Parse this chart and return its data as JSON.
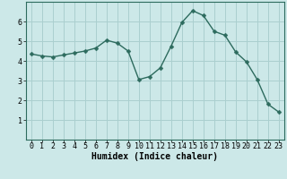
{
  "x": [
    0,
    1,
    2,
    3,
    4,
    5,
    6,
    7,
    8,
    9,
    10,
    11,
    12,
    13,
    14,
    15,
    16,
    17,
    18,
    19,
    20,
    21,
    22,
    23
  ],
  "y": [
    4.35,
    4.25,
    4.2,
    4.3,
    4.4,
    4.5,
    4.65,
    5.05,
    4.9,
    4.5,
    3.05,
    3.2,
    3.65,
    4.75,
    5.95,
    6.55,
    6.3,
    5.5,
    5.3,
    4.45,
    3.95,
    3.05,
    1.8,
    1.4
  ],
  "line_color": "#2d6b5e",
  "marker": "D",
  "marker_size": 2.5,
  "line_width": 1.0,
  "bg_color": "#cce8e8",
  "grid_color": "#aacfcf",
  "xlabel": "Humidex (Indice chaleur)",
  "xlabel_fontsize": 7,
  "tick_fontsize": 6,
  "ylim": [
    0,
    7
  ],
  "xlim": [
    -0.5,
    23.5
  ],
  "yticks": [
    1,
    2,
    3,
    4,
    5,
    6
  ],
  "xticks": [
    0,
    1,
    2,
    3,
    4,
    5,
    6,
    7,
    8,
    9,
    10,
    11,
    12,
    13,
    14,
    15,
    16,
    17,
    18,
    19,
    20,
    21,
    22,
    23
  ]
}
